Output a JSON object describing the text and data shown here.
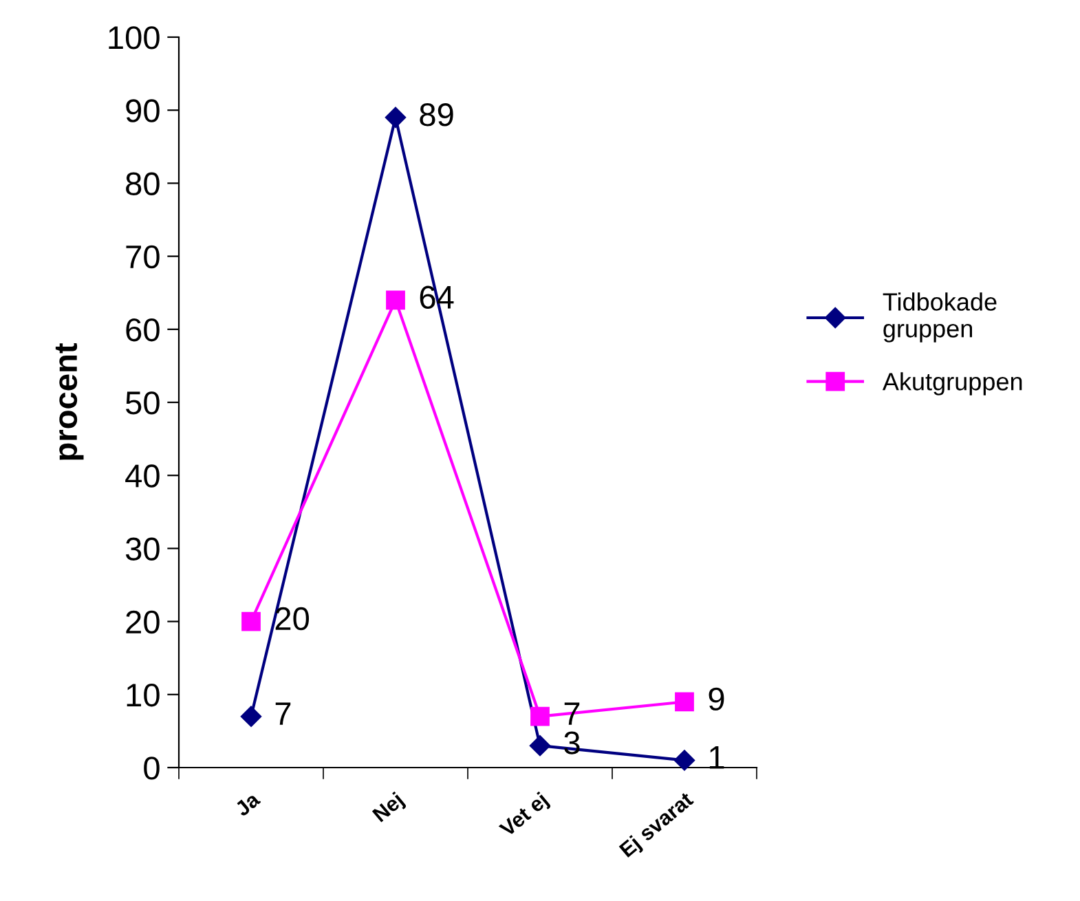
{
  "chart_data": {
    "type": "line",
    "ylabel": "procent",
    "categories": [
      "Ja",
      "Nej",
      "Vet ej",
      "Ej svarat"
    ],
    "series": [
      {
        "name": "Tidbokade gruppen",
        "color": "#000080",
        "marker": "diamond",
        "values": [
          7,
          89,
          3,
          1
        ]
      },
      {
        "name": "Akutgruppen",
        "color": "#ff00ff",
        "marker": "square",
        "values": [
          20,
          64,
          7,
          9
        ]
      }
    ],
    "ylim": [
      0,
      100
    ],
    "yticks": [
      0,
      10,
      20,
      30,
      40,
      50,
      60,
      70,
      80,
      90,
      100
    ],
    "grid": false,
    "legend": "right",
    "data_labels": true,
    "line_style": "solid"
  }
}
